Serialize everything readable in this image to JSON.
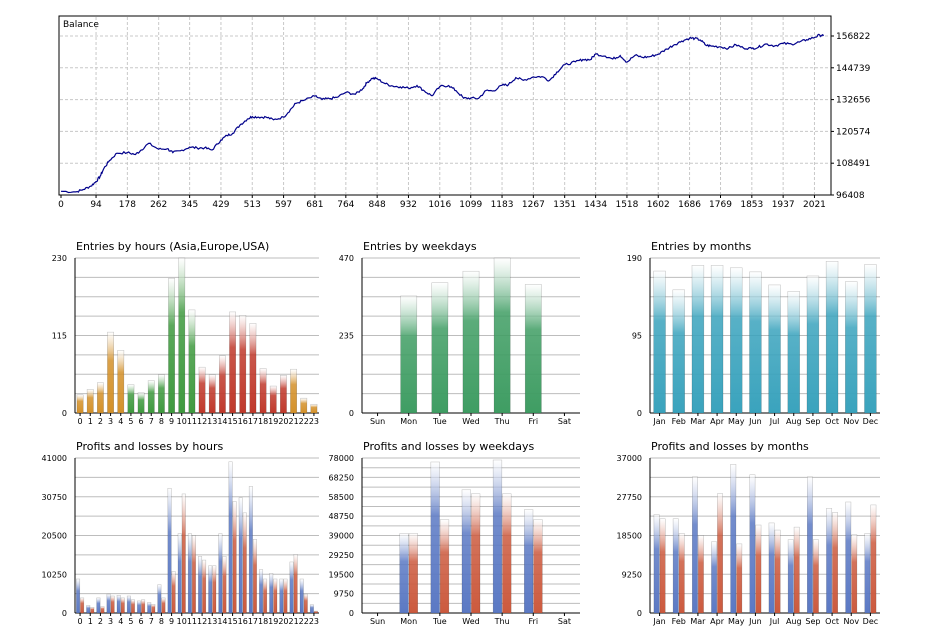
{
  "colors": {
    "balance_line": "#00008b",
    "green": "#3f9a3f",
    "gold": "#d4912a",
    "red": "#c0392b",
    "weekday_green": "#3f9d63",
    "month_teal": "#3aa3bd",
    "profit_blue": "#5b79c4",
    "loss_red": "#cc5a3e"
  },
  "chart_data": [
    {
      "id": "balance",
      "type": "line",
      "title": "Balance",
      "series": [
        {
          "x": [
            0,
            40,
            60,
            80,
            94,
            105,
            115,
            130,
            150,
            178,
            200,
            215,
            235,
            262,
            285,
            300,
            320,
            345,
            365,
            385,
            405,
            429,
            445,
            460,
            480,
            500,
            513,
            530,
            550,
            570,
            597,
            615,
            630,
            650,
            681,
            700,
            720,
            740,
            764,
            790,
            810,
            820,
            835,
            848,
            870,
            890,
            910,
            932,
            955,
            975,
            995,
            1016,
            1040,
            1060,
            1080,
            1099,
            1120,
            1140,
            1160,
            1183,
            1200,
            1220,
            1240,
            1267,
            1290,
            1310,
            1330,
            1351,
            1380,
            1400,
            1420,
            1434,
            1460,
            1480,
            1500,
            1518,
            1540,
            1560,
            1580,
            1602,
            1625,
            1645,
            1665,
            1686,
            1700,
            1715,
            1730,
            1745,
            1769,
            1790,
            1810,
            1830,
            1853,
            1870,
            1890,
            1915,
            1937,
            1960,
            1980,
            2000,
            2021,
            2035,
            2045
          ],
          "y": [
            97800,
            97600,
            98500,
            99800,
            101500,
            103500,
            106500,
            109500,
            112300,
            112500,
            111800,
            113500,
            116000,
            113800,
            114000,
            112500,
            113200,
            114600,
            114300,
            114300,
            113500,
            117300,
            119000,
            119800,
            123000,
            125300,
            126200,
            126000,
            126000,
            125000,
            126000,
            128800,
            131200,
            132300,
            134000,
            132700,
            133000,
            133500,
            135400,
            134700,
            136900,
            139000,
            140800,
            140600,
            138700,
            137800,
            137500,
            137000,
            138000,
            135900,
            134100,
            137600,
            138000,
            136000,
            133200,
            133200,
            133100,
            136100,
            136000,
            138100,
            138300,
            141000,
            140000,
            141300,
            141400,
            139900,
            143100,
            145900,
            147000,
            147900,
            147800,
            150000,
            149200,
            148100,
            149400,
            146900,
            149500,
            148700,
            149000,
            149900,
            151900,
            153500,
            154900,
            156000,
            155900,
            155300,
            153300,
            153000,
            152700,
            152100,
            153500,
            152300,
            152100,
            152500,
            153800,
            153100,
            154000,
            153700,
            154500,
            155400,
            156300,
            157200,
            156822
          ]
        }
      ],
      "x_ticks": [
        "0",
        "94",
        "178",
        "262",
        "345",
        "429",
        "513",
        "597",
        "681",
        "764",
        "848",
        "932",
        "1016",
        "1099",
        "1183",
        "1267",
        "1351",
        "1434",
        "1518",
        "1602",
        "1686",
        "1769",
        "1853",
        "1937",
        "2021"
      ],
      "y_ticks": [
        "96408",
        "108491",
        "120574",
        "132656",
        "144739",
        "156822"
      ],
      "xlim": [
        0,
        2060
      ],
      "ylim": [
        96408,
        156822
      ],
      "grid": true
    },
    {
      "id": "entries_hours",
      "type": "bar",
      "title": "Entries by hours (Asia,Europe,USA)",
      "categories": [
        "0",
        "1",
        "2",
        "3",
        "4",
        "5",
        "6",
        "7",
        "8",
        "9",
        "10",
        "11",
        "12",
        "13",
        "14",
        "15",
        "16",
        "17",
        "18",
        "19",
        "20",
        "21",
        "22",
        "23"
      ],
      "values": [
        27,
        35,
        45,
        120,
        93,
        42,
        30,
        48,
        57,
        200,
        230,
        153,
        68,
        57,
        85,
        150,
        145,
        133,
        66,
        40,
        56,
        65,
        22,
        13
      ],
      "ylim": [
        0,
        230
      ],
      "y_ticks": [
        "0",
        "115",
        "230"
      ],
      "grid": true
    },
    {
      "id": "entries_weekdays",
      "type": "bar",
      "title": "Entries by weekdays",
      "categories": [
        "Sun",
        "Mon",
        "Tue",
        "Wed",
        "Thu",
        "Fri",
        "Sat"
      ],
      "values": [
        0,
        355,
        395,
        430,
        470,
        390,
        0
      ],
      "ylim": [
        0,
        470
      ],
      "y_ticks": [
        "0",
        "235",
        "470"
      ],
      "grid": true
    },
    {
      "id": "entries_months",
      "type": "bar",
      "title": "Entries by months",
      "categories": [
        "Jan",
        "Feb",
        "Mar",
        "Apr",
        "May",
        "Jun",
        "Jul",
        "Aug",
        "Sep",
        "Oct",
        "Nov",
        "Dec"
      ],
      "values": [
        174,
        151,
        181,
        181,
        178,
        173,
        157,
        149,
        168,
        186,
        161,
        182
      ],
      "ylim": [
        0,
        190
      ],
      "y_ticks": [
        "0",
        "95",
        "190"
      ],
      "grid": true
    },
    {
      "id": "pl_hours",
      "type": "bar",
      "title": "Profits and losses by hours",
      "categories": [
        "0",
        "1",
        "2",
        "3",
        "4",
        "5",
        "6",
        "7",
        "8",
        "9",
        "10",
        "11",
        "12",
        "13",
        "14",
        "15",
        "16",
        "17",
        "18",
        "19",
        "20",
        "21",
        "22",
        "23"
      ],
      "series": [
        {
          "values": [
            9000,
            2000,
            4000,
            5000,
            4700,
            4500,
            3200,
            2800,
            7500,
            33000,
            21000,
            21000,
            15000,
            12500,
            21000,
            40000,
            30500,
            33500,
            11500,
            10500,
            9000,
            13500,
            9000,
            2200
          ]
        },
        {
          "values": [
            4000,
            1500,
            1700,
            4500,
            4000,
            3500,
            3500,
            2300,
            4000,
            11000,
            31500,
            20500,
            14000,
            12500,
            15000,
            29500,
            26500,
            19500,
            9000,
            9000,
            9000,
            15500,
            5000,
            500
          ]
        }
      ],
      "ylim": [
        0,
        41000
      ],
      "y_ticks": [
        "0",
        "10250",
        "20500",
        "30750",
        "41000"
      ],
      "grid": true
    },
    {
      "id": "pl_weekdays",
      "type": "bar",
      "title": "Profits and losses by weekdays",
      "categories": [
        "Sun",
        "Mon",
        "Tue",
        "Wed",
        "Thu",
        "Fri",
        "Sat"
      ],
      "series": [
        {
          "values": [
            0,
            40000,
            76000,
            62000,
            77000,
            52000,
            0
          ]
        },
        {
          "values": [
            0,
            40000,
            47000,
            60000,
            60000,
            47000,
            0
          ]
        }
      ],
      "ylim": [
        0,
        78000
      ],
      "y_ticks": [
        "0",
        "9750",
        "19500",
        "29250",
        "39000",
        "48750",
        "58500",
        "68250",
        "78000"
      ],
      "grid": true
    },
    {
      "id": "pl_months",
      "type": "bar",
      "title": "Profits and losses by months",
      "categories": [
        "Jan",
        "Feb",
        "Mar",
        "Apr",
        "May",
        "Jun",
        "Jul",
        "Aug",
        "Sep",
        "Oct",
        "Nov",
        "Dec"
      ],
      "series": [
        {
          "values": [
            23500,
            22500,
            32500,
            17000,
            35500,
            33000,
            21500,
            17500,
            32500,
            25000,
            26500,
            19000
          ]
        },
        {
          "values": [
            22500,
            19000,
            18500,
            28500,
            16500,
            21000,
            19800,
            20500,
            17500,
            24000,
            18700,
            25800
          ]
        }
      ],
      "ylim": [
        0,
        37000
      ],
      "y_ticks": [
        "0",
        "9250",
        "18500",
        "27750",
        "37000"
      ],
      "grid": true
    }
  ]
}
